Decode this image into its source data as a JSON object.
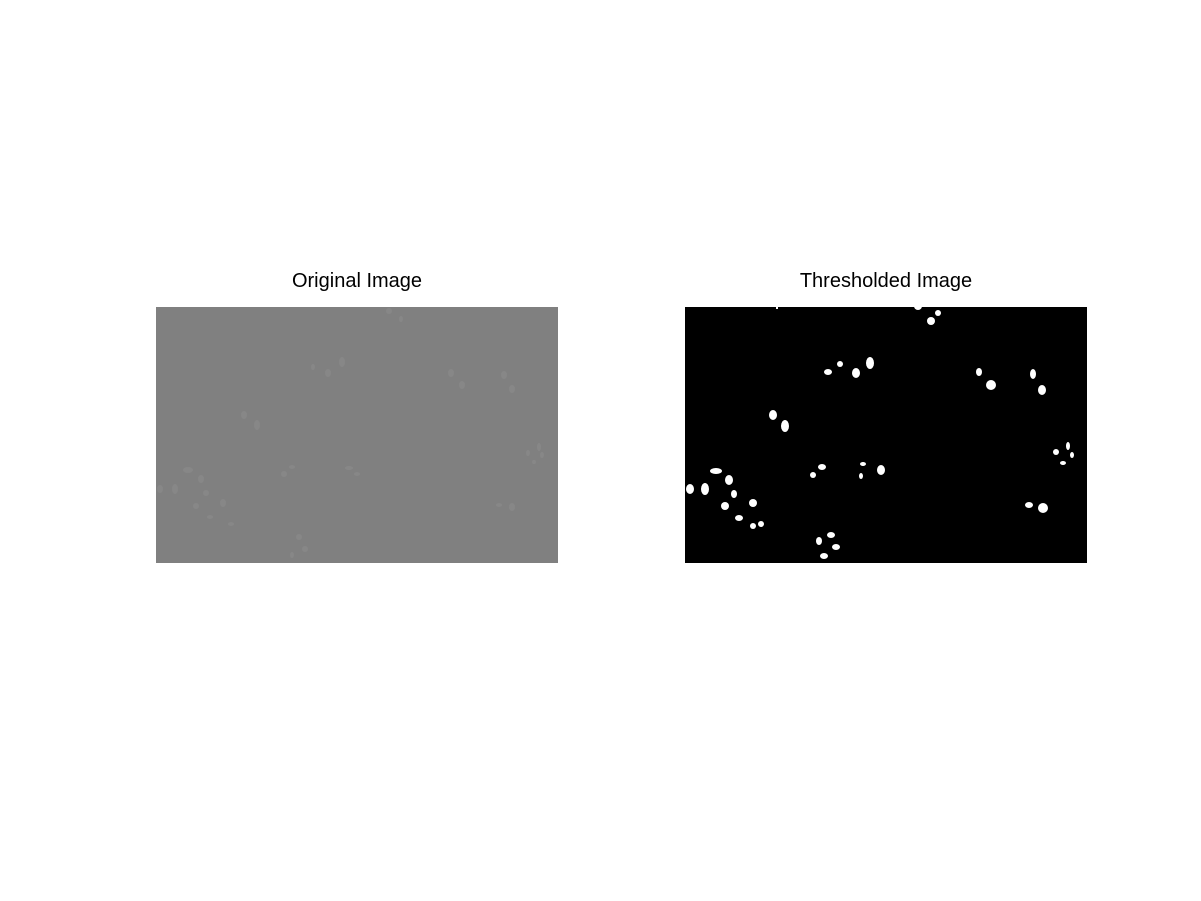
{
  "figure": {
    "left_title": "Original Image",
    "right_title": "Thresholded Image"
  },
  "colors": {
    "background": "#ffffff",
    "original_fill": "#808080",
    "original_blob": "#8a8a8a",
    "threshold_fill": "#000000",
    "threshold_blob": "#ffffff"
  }
}
